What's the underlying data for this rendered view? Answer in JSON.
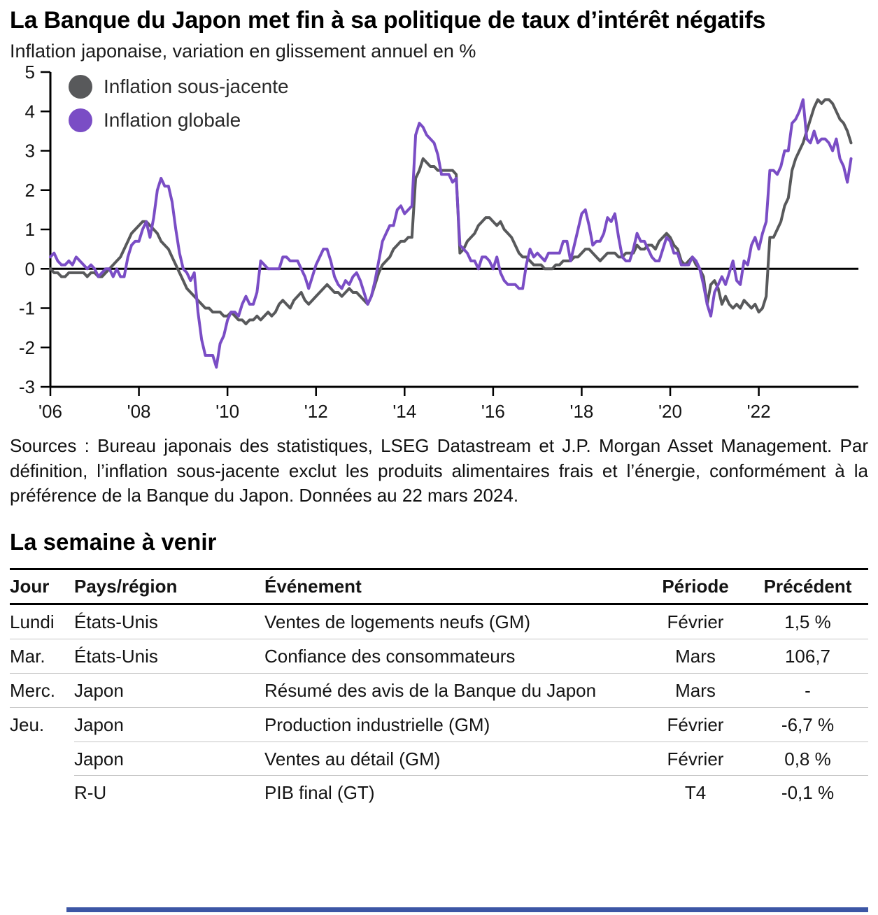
{
  "header": {
    "title": "La Banque du Japon met fin à sa politique de taux d’intérêt négatifs",
    "subtitle": "Inflation japonaise, variation en glissement annuel en %"
  },
  "chart_data": {
    "type": "line",
    "title": "Inflation japonaise, variation en glissement annuel en %",
    "xlabel": "",
    "ylabel": "%",
    "ylim": [
      -3,
      5
    ],
    "yticks": [
      5,
      4,
      3,
      2,
      1,
      0,
      -1,
      -2,
      -3
    ],
    "xticks": [
      "'06",
      "'08",
      "'10",
      "'12",
      "'14",
      "'16",
      "'18",
      "'20",
      "'22"
    ],
    "xtick_years": [
      2006,
      2008,
      2010,
      2012,
      2014,
      2016,
      2018,
      2020,
      2022
    ],
    "x_start_year": 2006,
    "x_end": 2024.25,
    "frequency": "monthly",
    "grid": false,
    "legend_position": "top-left-inside",
    "legend": [
      {
        "label": "Inflation sous-jacente",
        "color": "#58595b"
      },
      {
        "label": "Inflation globale",
        "color": "#7a4dc5"
      }
    ],
    "series": [
      {
        "name": "Inflation sous-jacente",
        "color": "#58595b",
        "values": [
          0,
          -0.1,
          -0.1,
          -0.2,
          -0.2,
          -0.1,
          -0.1,
          -0.1,
          -0.1,
          -0.1,
          -0.2,
          -0.1,
          -0.1,
          -0.2,
          -0.2,
          -0.1,
          0,
          0.1,
          0.2,
          0.3,
          0.5,
          0.7,
          0.9,
          1,
          1.1,
          1.2,
          1.2,
          1.1,
          1,
          0.9,
          0.7,
          0.6,
          0.5,
          0.3,
          0.1,
          -0.1,
          -0.3,
          -0.5,
          -0.6,
          -0.7,
          -0.8,
          -0.9,
          -1,
          -1,
          -1.1,
          -1.1,
          -1.1,
          -1.2,
          -1.2,
          -1.1,
          -1.2,
          -1.3,
          -1.3,
          -1.4,
          -1.3,
          -1.3,
          -1.2,
          -1.3,
          -1.2,
          -1.1,
          -1.2,
          -1.1,
          -0.9,
          -0.8,
          -0.9,
          -1,
          -0.8,
          -0.7,
          -0.6,
          -0.8,
          -0.9,
          -0.8,
          -0.7,
          -0.6,
          -0.5,
          -0.4,
          -0.5,
          -0.6,
          -0.6,
          -0.7,
          -0.6,
          -0.5,
          -0.6,
          -0.6,
          -0.7,
          -0.8,
          -0.9,
          -0.7,
          -0.4,
          -0.1,
          0.1,
          0.2,
          0.3,
          0.5,
          0.6,
          0.7,
          0.7,
          0.8,
          0.8,
          2.3,
          2.5,
          2.8,
          2.7,
          2.6,
          2.6,
          2.5,
          2.5,
          2.5,
          2.5,
          2.5,
          2.4,
          0.4,
          0.5,
          0.7,
          0.8,
          0.9,
          1.1,
          1.2,
          1.3,
          1.3,
          1.2,
          1.1,
          1.2,
          1,
          0.9,
          0.8,
          0.6,
          0.4,
          0.3,
          0.3,
          0.2,
          0.1,
          0.1,
          0.1,
          0,
          0,
          0,
          0.1,
          0.1,
          0.2,
          0.2,
          0.2,
          0.3,
          0.3,
          0.4,
          0.5,
          0.5,
          0.4,
          0.3,
          0.2,
          0.3,
          0.4,
          0.4,
          0.4,
          0.3,
          0.3,
          0.4,
          0.4,
          0.4,
          0.6,
          0.5,
          0.5,
          0.6,
          0.6,
          0.5,
          0.7,
          0.8,
          0.9,
          0.8,
          0.6,
          0.5,
          0.2,
          0.1,
          0.2,
          0.3,
          0.1,
          0,
          -0.2,
          -0.9,
          -0.4,
          -0.3,
          -0.5,
          -0.9,
          -0.7,
          -0.9,
          -1,
          -0.9,
          -1,
          -0.8,
          -0.9,
          -1,
          -0.9,
          -1.1,
          -1,
          -0.7,
          0.8,
          0.8,
          1,
          1.2,
          1.6,
          1.8,
          2.5,
          2.8,
          3,
          3.2,
          3.5,
          3.8,
          4.1,
          4.3,
          4.2,
          4.3,
          4.3,
          4.2,
          4,
          3.8,
          3.7,
          3.5,
          3.2
        ]
      },
      {
        "name": "Inflation globale",
        "color": "#7a4dc5",
        "values": [
          0.3,
          0.4,
          0.2,
          0.1,
          0.1,
          0.2,
          0.1,
          0.3,
          0.2,
          0.1,
          0,
          0.1,
          0,
          -0.2,
          -0.1,
          0,
          0,
          -0.2,
          0,
          -0.2,
          -0.2,
          0.3,
          0.6,
          0.7,
          0.7,
          1,
          1.2,
          0.8,
          1.3,
          2,
          2.3,
          2.1,
          2.1,
          1.7,
          1,
          0.4,
          0,
          -0.1,
          -0.3,
          -0.1,
          -1.1,
          -1.8,
          -2.2,
          -2.2,
          -2.2,
          -2.5,
          -1.9,
          -1.7,
          -1.3,
          -1.1,
          -1.1,
          -1.2,
          -0.9,
          -0.7,
          -0.9,
          -0.9,
          -0.6,
          0.2,
          0.1,
          0,
          0,
          0,
          0,
          0.3,
          0.3,
          0.2,
          0.2,
          0.2,
          0,
          -0.2,
          -0.5,
          -0.2,
          0.1,
          0.3,
          0.5,
          0.5,
          0.2,
          -0.2,
          -0.4,
          -0.5,
          -0.3,
          -0.4,
          -0.2,
          -0.1,
          -0.3,
          -0.6,
          -0.9,
          -0.7,
          -0.3,
          0.2,
          0.7,
          0.9,
          1.1,
          1.1,
          1.5,
          1.6,
          1.4,
          1.5,
          1.6,
          3.4,
          3.7,
          3.6,
          3.4,
          3.3,
          3.2,
          2.9,
          2.4,
          2.4,
          2.4,
          2.2,
          2.3,
          0.6,
          0.5,
          0.4,
          0.2,
          0.2,
          0,
          0.3,
          0.3,
          0.2,
          0,
          0.3,
          -0.1,
          -0.3,
          -0.4,
          -0.4,
          -0.4,
          -0.5,
          -0.5,
          0.1,
          0.5,
          0.3,
          0.4,
          0.3,
          0.2,
          0.4,
          0.4,
          0.4,
          0.4,
          0.7,
          0.7,
          0.2,
          0.6,
          1,
          1.4,
          1.5,
          1.1,
          0.6,
          0.7,
          0.7,
          0.9,
          1.3,
          1.2,
          1.4,
          0.8,
          0.3,
          0.2,
          0.2,
          0.5,
          0.9,
          0.7,
          0.7,
          0.5,
          0.3,
          0.2,
          0.2,
          0.5,
          0.8,
          0.7,
          0.4,
          0.4,
          0.1,
          0.1,
          0.1,
          0.3,
          0.2,
          0,
          -0.4,
          -0.9,
          -1.2,
          -0.6,
          -0.4,
          -0.2,
          -0.4,
          -0.1,
          0.2,
          -0.3,
          -0.4,
          0.2,
          0.1,
          0.6,
          0.8,
          0.5,
          0.9,
          1.2,
          2.5,
          2.5,
          2.4,
          2.6,
          3,
          3,
          3.7,
          3.8,
          4,
          4.3,
          3.3,
          3.2,
          3.5,
          3.2,
          3.3,
          3.3,
          3.2,
          3,
          3.3,
          2.8,
          2.6,
          2.2,
          2.8
        ]
      }
    ]
  },
  "source": {
    "text": "Sources : Bureau japonais des statistiques, LSEG Datastream et J.P. Morgan Asset Management. Par définition, l’inflation sous-jacente exclut les produits alimentaires frais et l’énergie, conformément à la préférence de la Banque du Japon. Données au 22 mars 2024."
  },
  "week": {
    "title": "La semaine à venir",
    "columns": [
      "Jour",
      "Pays/région",
      "Événement",
      "Période",
      "Précédent"
    ],
    "rows": [
      {
        "jour": "Lundi",
        "pays": "États-Unis",
        "evenement": "Ventes de logements neufs (GM)",
        "periode": "Février",
        "precedent": "1,5 %",
        "sep": "full"
      },
      {
        "jour": "Mar.",
        "pays": "États-Unis",
        "evenement": "Confiance des consommateurs",
        "periode": "Mars",
        "precedent": "106,7",
        "sep": "full"
      },
      {
        "jour": "Merc.",
        "pays": "Japon",
        "evenement": "Résumé des avis de la Banque du Japon",
        "periode": "Mars",
        "precedent": "-",
        "sep": "full"
      },
      {
        "jour": "Jeu.",
        "pays": "Japon",
        "evenement": "Production industrielle (GM)",
        "periode": "Février",
        "precedent": "-6,7 %",
        "sep": "indent"
      },
      {
        "jour": "",
        "pays": "Japon",
        "evenement": "Ventes au détail (GM)",
        "periode": "Février",
        "precedent": "0,8 %",
        "sep": "indent"
      },
      {
        "jour": "",
        "pays": "R-U",
        "evenement": "PIB final (GT)",
        "periode": "T4",
        "precedent": "-0,1 %",
        "sep": "none"
      }
    ]
  },
  "colors": {
    "core_line": "#58595b",
    "headline_line": "#7a4dc5",
    "axis": "#000000",
    "row_separator": "#c4c4c4",
    "bottom_bar": "#3c56a5",
    "text": "#141414"
  }
}
